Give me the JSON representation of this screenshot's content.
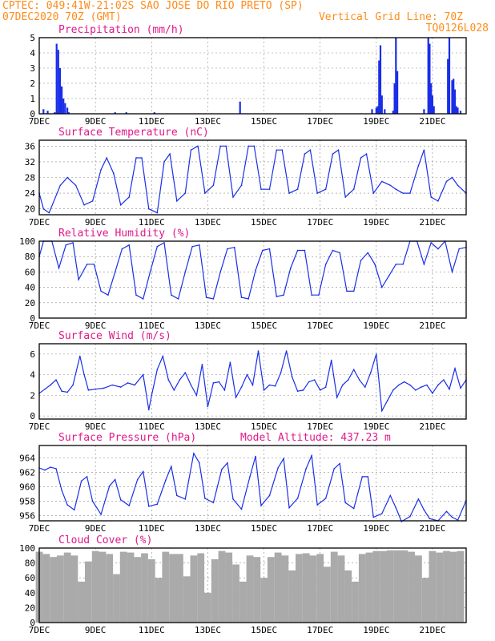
{
  "header": {
    "line1": "CPTEC:  049:41W-21:02S  SAO JOSE DO RIO PRETO (SP)",
    "line2_left": "07DEC2020 70Z (GMT)",
    "line2_right": "Vertical Grid Line: 70Z",
    "line3_right": "TQ0126L028"
  },
  "colors": {
    "header": "#ff8c1a",
    "title": "#e0198a",
    "series": "#1a2ee8",
    "bars": "#1a2ee8",
    "cloud": "#aaaaaa",
    "grid": "#888888"
  },
  "x_axis": {
    "ticks": [
      "7DEC",
      "9DEC",
      "11DEC",
      "13DEC",
      "15DEC",
      "17DEC",
      "19DEC",
      "21DEC"
    ],
    "tick_days": [
      7,
      9,
      11,
      13,
      15,
      17,
      19,
      21
    ],
    "range_days": [
      7,
      22.2
    ]
  },
  "chart_data": [
    {
      "type": "bar",
      "title": "Precipitation (mm/h)",
      "ylim": [
        0,
        5
      ],
      "yticks": [
        "0",
        "1",
        "2",
        "3",
        "4",
        "5"
      ],
      "x_days": [
        7.15,
        7.3,
        7.55,
        7.62,
        7.68,
        7.74,
        7.8,
        7.86,
        7.92,
        8.0,
        8.05,
        9.7,
        10.1,
        11.1,
        14.15,
        18.85,
        19.0,
        19.05,
        19.1,
        19.15,
        19.2,
        19.3,
        19.6,
        19.65,
        19.7,
        19.75,
        20.7,
        20.85,
        20.9,
        20.95,
        21.0,
        21.05,
        21.55,
        21.6,
        21.7,
        21.75,
        21.8,
        21.85,
        21.9,
        22.0
      ],
      "values": [
        0.3,
        0.2,
        0.1,
        4.6,
        4.2,
        3.0,
        1.8,
        1.0,
        0.7,
        0.4,
        0.1,
        0.1,
        0.1,
        0.1,
        0.8,
        0.3,
        0.4,
        0.5,
        3.5,
        4.5,
        1.2,
        0.3,
        0.2,
        2.0,
        5.0,
        2.8,
        0.3,
        5.0,
        4.6,
        2.0,
        1.2,
        0.5,
        3.6,
        5.0,
        2.2,
        2.3,
        1.6,
        0.5,
        0.4,
        0.2
      ]
    },
    {
      "type": "line",
      "title": "Surface Temperature (nC)",
      "ylim": [
        18.5,
        37.5
      ],
      "yticks": [
        "20",
        "24",
        "28",
        "32",
        "36"
      ],
      "x_days": [
        7.0,
        7.15,
        7.35,
        7.75,
        8.0,
        8.3,
        8.6,
        8.9,
        9.2,
        9.4,
        9.65,
        9.9,
        10.2,
        10.45,
        10.65,
        10.9,
        11.2,
        11.45,
        11.65,
        11.9,
        12.2,
        12.4,
        12.65,
        12.9,
        13.2,
        13.45,
        13.65,
        13.9,
        14.2,
        14.45,
        14.65,
        14.9,
        15.2,
        15.45,
        15.65,
        15.9,
        16.2,
        16.45,
        16.65,
        16.9,
        17.2,
        17.45,
        17.65,
        17.9,
        18.2,
        18.45,
        18.65,
        18.9,
        19.2,
        19.5,
        19.7,
        19.95,
        20.2,
        20.5,
        20.7,
        20.95,
        21.2,
        21.5,
        21.7,
        21.9,
        22.2
      ],
      "values": [
        24,
        20,
        19,
        26,
        28,
        26,
        21,
        22,
        30,
        33,
        29,
        21,
        23,
        33,
        33,
        20,
        19,
        32,
        34,
        22,
        24,
        35,
        36,
        24,
        26,
        36,
        36,
        23,
        26,
        36,
        36,
        25,
        25,
        35,
        35,
        24,
        25,
        34,
        35,
        24,
        25,
        34,
        35,
        23,
        25,
        33,
        34,
        24,
        27,
        26,
        25,
        24,
        24,
        31,
        35,
        23,
        22,
        27,
        28,
        26,
        24
      ]
    },
    {
      "type": "line",
      "title": "Relative Humidity (%)",
      "ylim": [
        0,
        100
      ],
      "yticks": [
        "0",
        "20",
        "40",
        "60",
        "80",
        "100"
      ],
      "x_days": [
        7.0,
        7.15,
        7.45,
        7.7,
        7.95,
        8.2,
        8.4,
        8.7,
        8.95,
        9.2,
        9.45,
        9.7,
        9.95,
        10.2,
        10.45,
        10.7,
        10.95,
        11.2,
        11.45,
        11.7,
        11.95,
        12.2,
        12.45,
        12.7,
        12.95,
        13.2,
        13.45,
        13.7,
        13.95,
        14.2,
        14.45,
        14.7,
        14.95,
        15.2,
        15.45,
        15.7,
        15.95,
        16.2,
        16.45,
        16.7,
        16.95,
        17.2,
        17.45,
        17.7,
        17.95,
        18.2,
        18.45,
        18.7,
        18.95,
        19.2,
        19.45,
        19.7,
        19.95,
        20.2,
        20.45,
        20.7,
        20.95,
        21.2,
        21.45,
        21.7,
        21.95,
        22.2
      ],
      "values": [
        80,
        100,
        100,
        65,
        95,
        98,
        50,
        70,
        70,
        35,
        30,
        60,
        90,
        95,
        30,
        25,
        60,
        93,
        98,
        30,
        25,
        60,
        93,
        95,
        27,
        25,
        60,
        90,
        92,
        27,
        25,
        62,
        88,
        90,
        28,
        30,
        65,
        88,
        88,
        30,
        30,
        70,
        88,
        85,
        35,
        35,
        75,
        85,
        70,
        40,
        55,
        70,
        70,
        100,
        100,
        70,
        98,
        90,
        100,
        60,
        90,
        92
      ]
    },
    {
      "type": "line",
      "title": "Surface Wind (m/s)",
      "ylim": [
        -0.3,
        7
      ],
      "yticks": [
        "0",
        "2",
        "4",
        "6"
      ],
      "x_days": [
        7.0,
        7.2,
        7.4,
        7.6,
        7.8,
        8.0,
        8.2,
        8.45,
        8.6,
        8.75,
        9.0,
        9.3,
        9.6,
        9.9,
        10.15,
        10.4,
        10.7,
        10.9,
        11.0,
        11.2,
        11.4,
        11.6,
        11.8,
        12.0,
        12.2,
        12.4,
        12.6,
        12.8,
        13.0,
        13.2,
        13.4,
        13.6,
        13.8,
        14.0,
        14.2,
        14.4,
        14.6,
        14.8,
        15.0,
        15.2,
        15.4,
        15.6,
        15.8,
        16.0,
        16.2,
        16.4,
        16.6,
        16.8,
        17.0,
        17.2,
        17.4,
        17.6,
        17.8,
        18.0,
        18.2,
        18.4,
        18.6,
        18.8,
        19.0,
        19.2,
        19.4,
        19.6,
        19.8,
        20.0,
        20.2,
        20.4,
        20.6,
        20.8,
        21.0,
        21.2,
        21.4,
        21.6,
        21.8,
        22.0,
        22.2
      ],
      "values": [
        2.2,
        2.6,
        3.0,
        3.5,
        2.4,
        2.3,
        3.0,
        5.8,
        4.0,
        2.5,
        2.6,
        2.7,
        3.0,
        2.8,
        3.2,
        3.0,
        4.0,
        0.6,
        2.0,
        4.5,
        5.8,
        3.5,
        2.5,
        3.5,
        4.2,
        3.0,
        2.0,
        5.0,
        0.9,
        3.2,
        3.3,
        2.5,
        5.2,
        1.8,
        2.8,
        4.0,
        3.0,
        6.3,
        2.5,
        3.0,
        2.9,
        4.2,
        6.3,
        3.8,
        2.4,
        2.5,
        3.3,
        3.5,
        2.5,
        2.8,
        5.4,
        1.8,
        3.0,
        3.5,
        4.5,
        3.5,
        2.8,
        4.2,
        6.0,
        0.5,
        1.5,
        2.5,
        3.0,
        3.3,
        3.0,
        2.5,
        2.8,
        3.0,
        2.2,
        3.0,
        3.5,
        2.6,
        4.6,
        2.7,
        3.5
      ]
    },
    {
      "type": "line",
      "title": "Surface Pressure (hPa)",
      "annotation": "Model Altitude: 437.23 m",
      "ylim": [
        955.3,
        965.7
      ],
      "yticks": [
        "956",
        "958",
        "960",
        "962",
        "964"
      ],
      "x_days": [
        7.0,
        7.2,
        7.4,
        7.6,
        7.8,
        8.0,
        8.25,
        8.5,
        8.7,
        8.9,
        9.2,
        9.5,
        9.7,
        9.9,
        10.2,
        10.5,
        10.7,
        10.9,
        11.2,
        11.5,
        11.7,
        11.9,
        12.2,
        12.5,
        12.7,
        12.9,
        13.2,
        13.5,
        13.7,
        13.9,
        14.2,
        14.5,
        14.7,
        14.9,
        15.2,
        15.5,
        15.7,
        15.9,
        16.2,
        16.5,
        16.7,
        16.9,
        17.2,
        17.5,
        17.7,
        17.9,
        18.2,
        18.5,
        18.7,
        18.9,
        19.2,
        19.5,
        19.7,
        19.9,
        20.2,
        20.5,
        20.7,
        20.9,
        21.2,
        21.5,
        21.7,
        21.9,
        22.2
      ],
      "values": [
        962.6,
        962.3,
        962.7,
        962.5,
        959.5,
        957.5,
        956.8,
        960.8,
        961.4,
        958.0,
        956.2,
        960.1,
        961.0,
        958.2,
        957.4,
        961.0,
        962.1,
        957.3,
        957.6,
        960.9,
        962.8,
        958.8,
        958.3,
        964.6,
        963.3,
        958.4,
        957.8,
        962.4,
        963.3,
        958.3,
        956.9,
        961.4,
        964.2,
        957.4,
        958.8,
        962.6,
        963.9,
        957.1,
        958.4,
        962.5,
        964.3,
        957.5,
        958.4,
        962.5,
        963.2,
        957.8,
        957.0,
        961.4,
        961.4,
        955.8,
        956.3,
        958.8,
        957.1,
        955.2,
        955.9,
        958.3,
        956.8,
        955.6,
        955.3,
        956.6,
        955.8,
        955.4,
        958.1
      ]
    },
    {
      "type": "bar",
      "title": "Cloud Cover (%)",
      "ylim": [
        0,
        100
      ],
      "yticks": [
        "0",
        "20",
        "40",
        "60",
        "80",
        "100"
      ],
      "x_days": [
        7.0,
        7.25,
        7.5,
        7.75,
        8.0,
        8.25,
        8.5,
        8.75,
        9.0,
        9.25,
        9.5,
        9.75,
        10.0,
        10.25,
        10.5,
        10.75,
        11.0,
        11.25,
        11.5,
        11.75,
        12.0,
        12.25,
        12.5,
        12.75,
        13.0,
        13.25,
        13.5,
        13.75,
        14.0,
        14.25,
        14.5,
        14.75,
        15.0,
        15.25,
        15.5,
        15.75,
        16.0,
        16.25,
        16.5,
        16.75,
        17.0,
        17.25,
        17.5,
        17.75,
        18.0,
        18.25,
        18.5,
        18.75,
        19.0,
        19.25,
        19.5,
        19.75,
        20.0,
        20.25,
        20.5,
        20.75,
        21.0,
        21.25,
        21.5,
        21.75,
        22.0
      ],
      "values": [
        95,
        92,
        88,
        90,
        94,
        90,
        55,
        82,
        96,
        95,
        92,
        65,
        95,
        94,
        88,
        93,
        85,
        60,
        95,
        92,
        92,
        62,
        90,
        93,
        40,
        85,
        96,
        94,
        78,
        55,
        90,
        88,
        60,
        88,
        94,
        90,
        70,
        92,
        93,
        90,
        92,
        75,
        95,
        90,
        70,
        55,
        92,
        94,
        96,
        96,
        97,
        97,
        97,
        95,
        90,
        60,
        96,
        94,
        96,
        95,
        96
      ]
    }
  ]
}
